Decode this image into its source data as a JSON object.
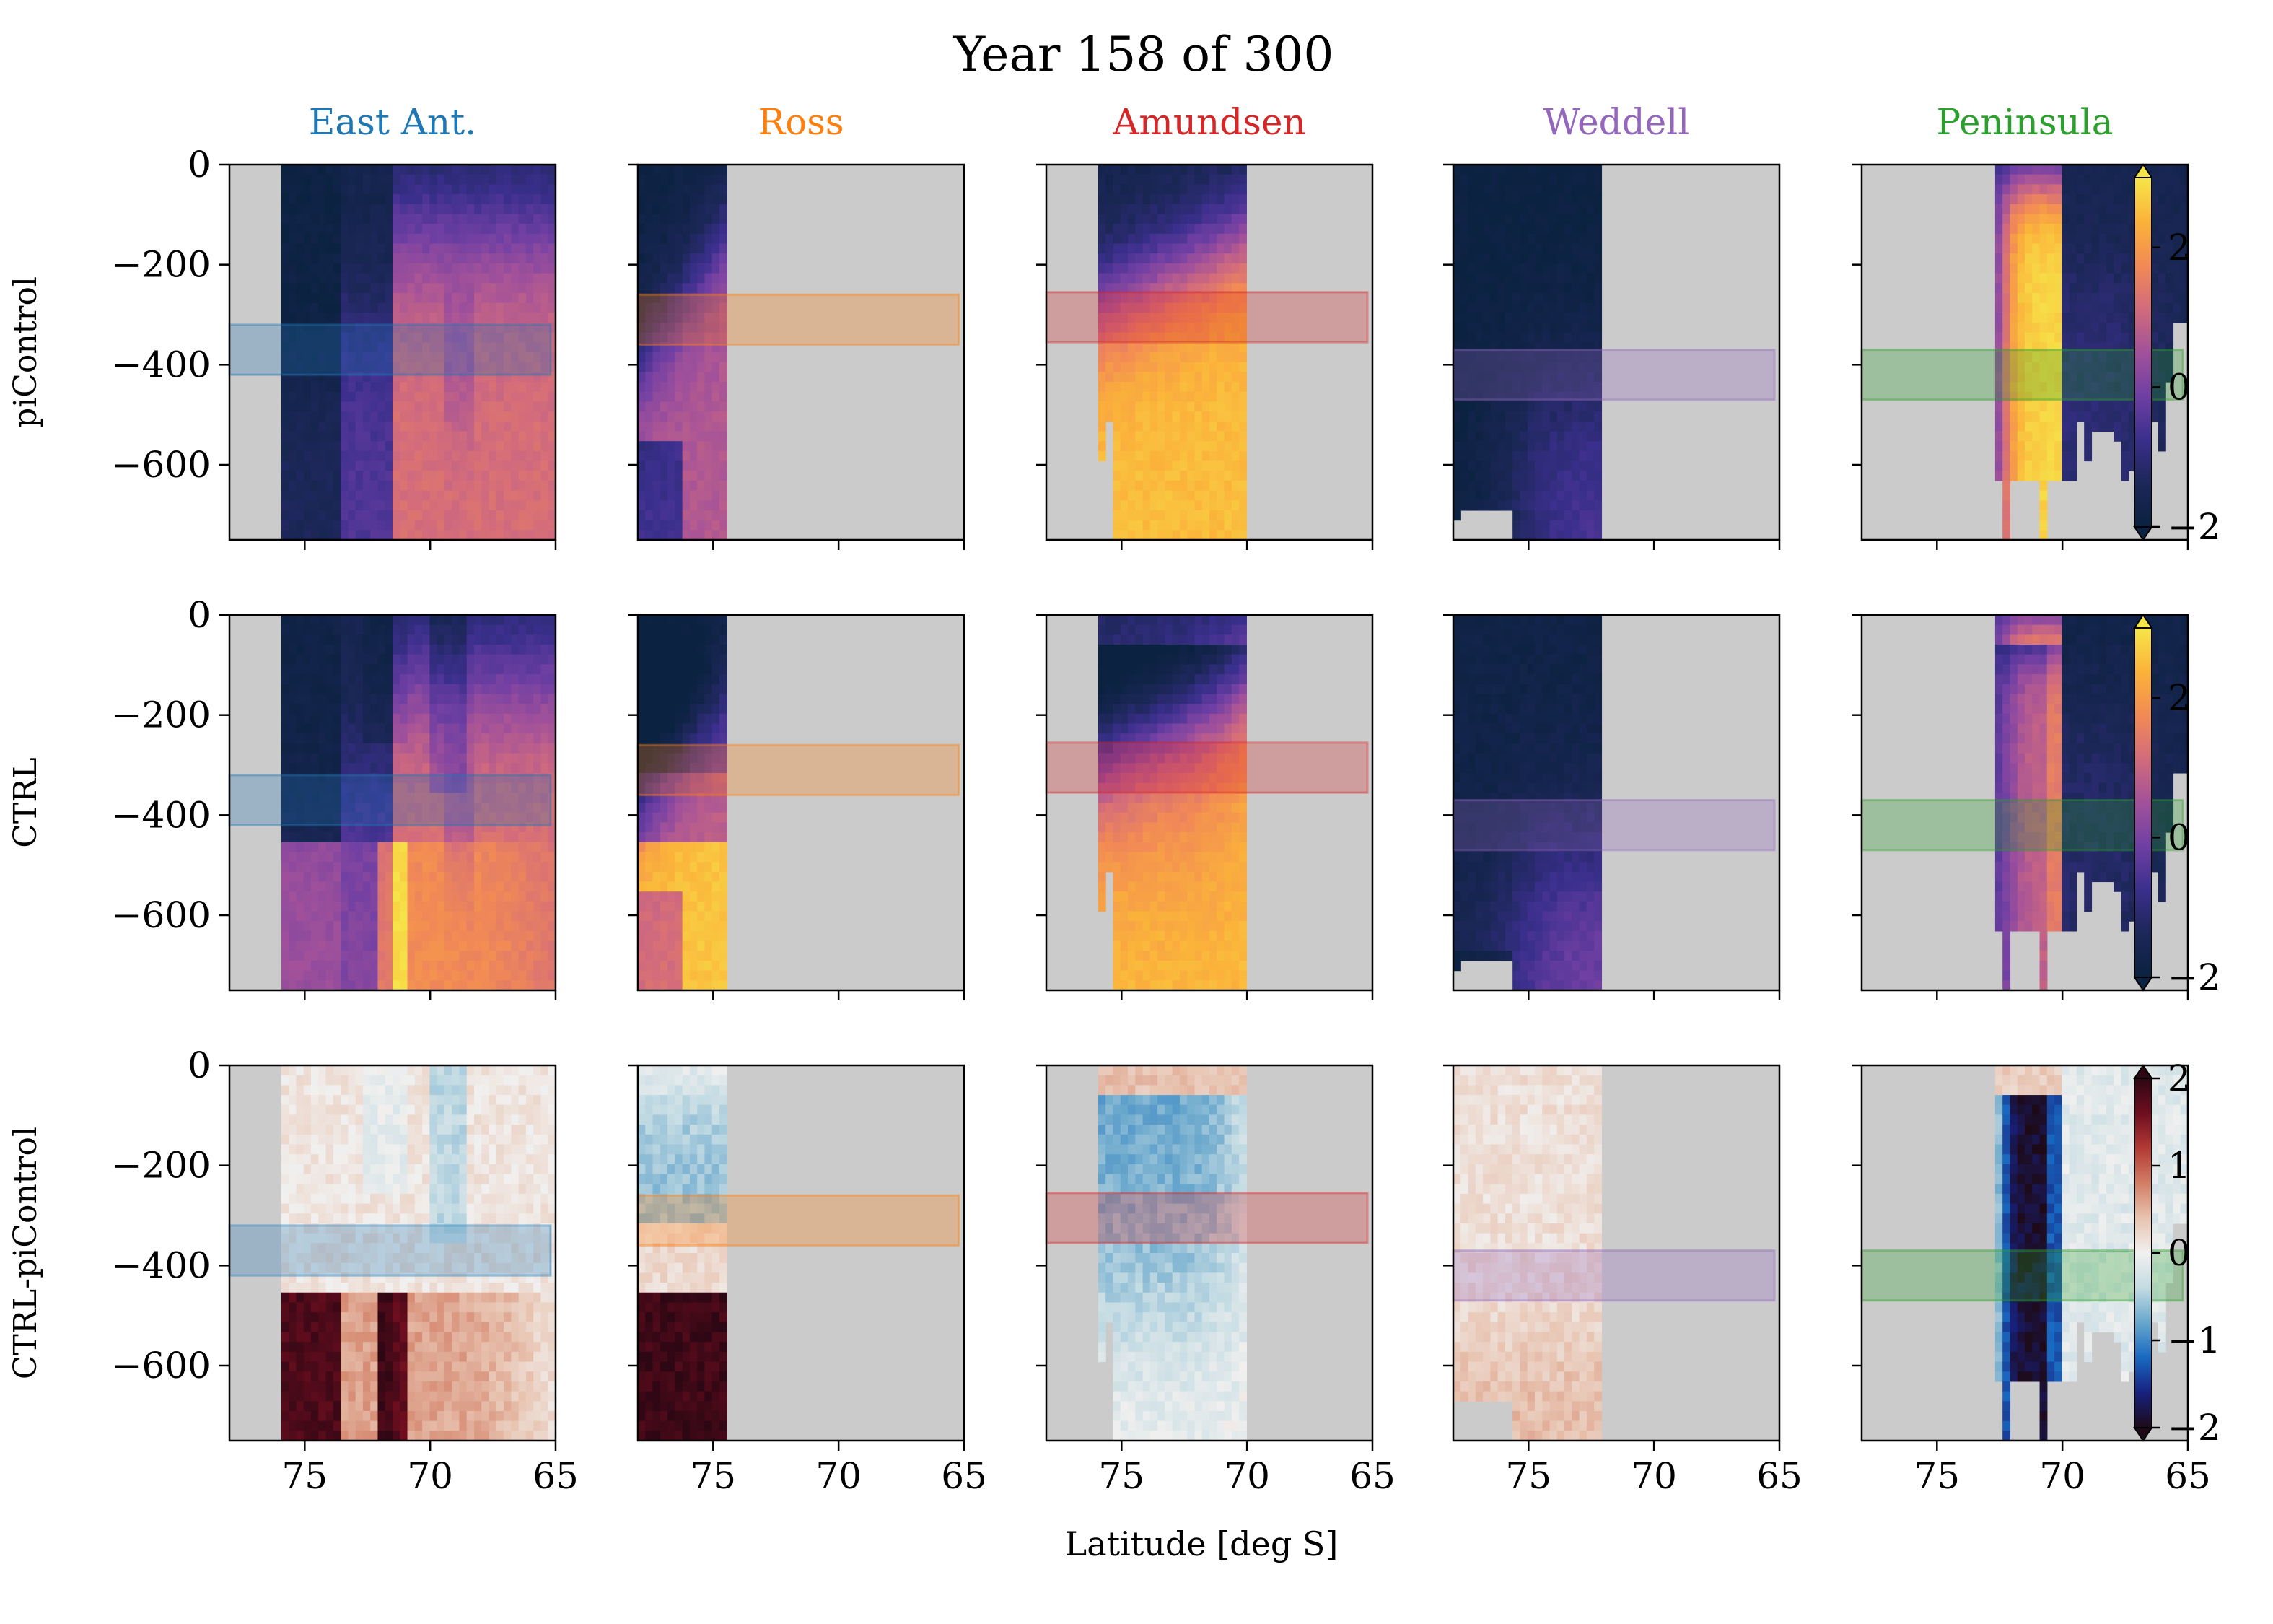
{
  "chart_data": {
    "type": "heatmap",
    "title": "Year 158 of 300",
    "xlabel": "Latitude [deg S]",
    "ylabel": "",
    "xlim": [
      78,
      65
    ],
    "ylim": [
      -750,
      0
    ],
    "x_ticks": [
      75,
      70,
      65
    ],
    "x_tick_labels": [
      "75",
      "70",
      "65"
    ],
    "y_ticks": [
      0,
      -200,
      -400,
      -600
    ],
    "y_tick_labels": [
      "0",
      "−200",
      "−400",
      "−600"
    ],
    "grid": false,
    "columns": [
      {
        "name": "East Ant.",
        "color": "#1f77b4",
        "lat_range": [
          76,
          65
        ],
        "band_depth": [
          -320,
          -420
        ],
        "band_lat": [
          78,
          65.2
        ]
      },
      {
        "name": "Ross",
        "color": "#ff7f0e",
        "lat_range": [
          78,
          74.6
        ],
        "band_depth": [
          -260,
          -360
        ],
        "band_lat": [
          78,
          65.2
        ]
      },
      {
        "name": "Amundsen",
        "color": "#d62728",
        "lat_range": [
          76,
          70
        ],
        "band_depth": [
          -255,
          -355
        ],
        "band_lat": [
          78,
          65.2
        ]
      },
      {
        "name": "Weddell",
        "color": "#9467bd",
        "lat_range": [
          78,
          72
        ],
        "band_depth": [
          -370,
          -470
        ],
        "band_lat": [
          78,
          65.2
        ]
      },
      {
        "name": "Peninsula",
        "color": "#2ca02c",
        "lat_range": [
          72.7,
          65
        ],
        "band_depth": [
          -370,
          -470
        ],
        "band_lat": [
          78,
          65.2
        ]
      }
    ],
    "rows": [
      {
        "name": "piControl",
        "colorbar": {
          "min": -2,
          "max": 3,
          "ticks": [
            2,
            0,
            -2
          ],
          "tick_labels": [
            "2",
            "0",
            "−2"
          ],
          "extend": "both"
        }
      },
      {
        "name": "CTRL",
        "colorbar": {
          "min": -2,
          "max": 3,
          "ticks": [
            2,
            0,
            -2
          ],
          "tick_labels": [
            "2",
            "0",
            "−2"
          ],
          "extend": "both"
        }
      },
      {
        "name": "CTRL-piControl",
        "colorbar": {
          "min": -2,
          "max": 2,
          "ticks": [
            2,
            1,
            0,
            -1,
            -2
          ],
          "tick_labels": [
            "2",
            "1",
            "0",
            "−1",
            "−2"
          ],
          "extend": "both"
        }
      }
    ],
    "colors": {
      "background": "#cbcbcb",
      "thermal": [
        "#0b2240",
        "#1c2758",
        "#3a2f8c",
        "#6f3fa3",
        "#a2519a",
        "#d26b7c",
        "#f28a55",
        "#fbb33a",
        "#f6e54a"
      ],
      "balance": [
        "#1e0a17",
        "#17217d",
        "#1868c1",
        "#67a6cc",
        "#c3dbe3",
        "#f1f0ef",
        "#e8c3b0",
        "#d27e65",
        "#b23a35",
        "#6e0e1f",
        "#2e0714"
      ]
    }
  }
}
